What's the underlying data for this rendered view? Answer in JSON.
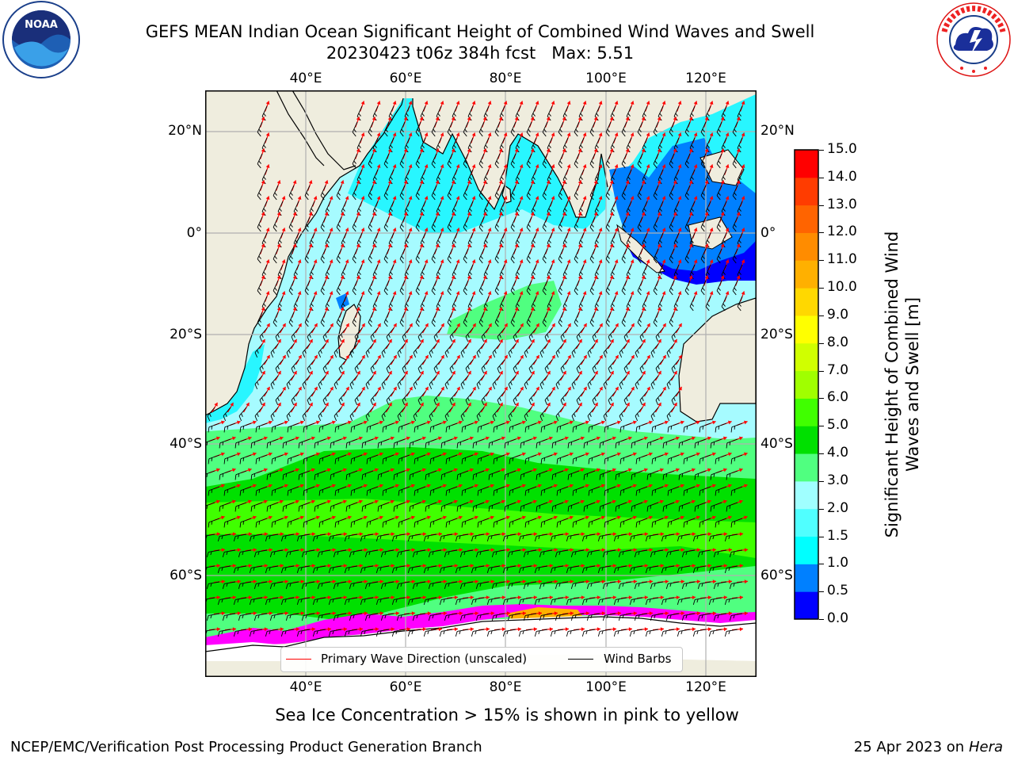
{
  "header": {
    "title_line1": "GEFS MEAN Indian Ocean Significant Height of Combined Wind Waves and Swell",
    "title_line2": "20230423 t06z 384h fcst   Max: 5.51"
  },
  "logos": {
    "left": "NOAA",
    "right": "NATIONAL WEATHER SERVICE",
    "left_ring_text": "NATIONAL OCEANIC AND ATMOSPHERIC ADMINISTRATION · U.S. DEPARTMENT OF COMMERCE"
  },
  "map": {
    "lon_labels": [
      "40°E",
      "60°E",
      "80°E",
      "100°E",
      "120°E"
    ],
    "lat_labels": [
      "20°N",
      "0°",
      "20°S",
      "40°S",
      "60°S"
    ],
    "lon_values": [
      40,
      60,
      80,
      100,
      120
    ],
    "lat_values": [
      20,
      0,
      -20,
      -40,
      -60
    ],
    "extent": {
      "lon": [
        20,
        130
      ],
      "lat": [
        -70,
        28
      ]
    },
    "colors": {
      "land": "#efedde",
      "grid": "#b0b0b0",
      "arrow": "#ff0000",
      "barb": "#000000"
    }
  },
  "colorbar": {
    "label": "Significant Height of Combined Wind Waves and Swell [m]",
    "ticks": [
      "0.0",
      "0.5",
      "1.0",
      "1.5",
      "2.0",
      "3.0",
      "4.0",
      "5.0",
      "6.0",
      "7.0",
      "8.0",
      "9.0",
      "10.0",
      "11.0",
      "12.0",
      "13.0",
      "14.0",
      "15.0"
    ],
    "colors": [
      "#0000ff",
      "#0080ff",
      "#00ffff",
      "#50ffff",
      "#a0ffff",
      "#50ff80",
      "#00e000",
      "#40ff00",
      "#a0ff00",
      "#d0ff00",
      "#ffff00",
      "#ffd800",
      "#ffb000",
      "#ff8c00",
      "#ff6400",
      "#ff3c00",
      "#ff0000"
    ]
  },
  "legend": {
    "wave_label": "Primary Wave Direction (unscaled)",
    "barb_label": "Wind Barbs"
  },
  "caption": "Sea Ice Concentration > 15% is shown in pink to yellow",
  "footer": {
    "left": "NCEP/EMC/Verification Post Processing Product Generation Branch",
    "date": "25 Apr 2023 on ",
    "machine": "Hera"
  }
}
